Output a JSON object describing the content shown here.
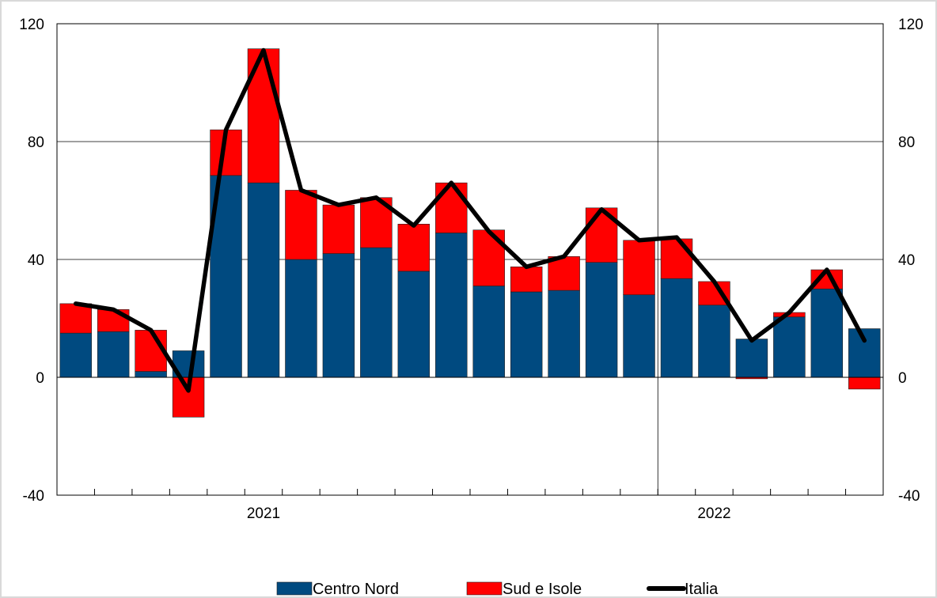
{
  "chart_data": {
    "type": "bar",
    "stacked": true,
    "x": [
      "2020-09",
      "2020-10",
      "2020-11",
      "2020-12",
      "2021-01",
      "2021-02",
      "2021-03",
      "2021-04",
      "2021-05",
      "2021-06",
      "2021-07",
      "2021-08",
      "2021-09",
      "2021-10",
      "2021-11",
      "2021-12",
      "2022-01",
      "2022-02",
      "2022-03",
      "2022-04",
      "2022-05",
      "2022-06"
    ],
    "x_tick_labels": [
      {
        "label": "2021",
        "x": "2021-02"
      },
      {
        "label": "2022",
        "x": "2022-02"
      }
    ],
    "series": [
      {
        "name": "Centro Nord",
        "kind": "bar",
        "color": "#004a80",
        "values": [
          15,
          15.5,
          2,
          9,
          68.5,
          66,
          40,
          42,
          44,
          36,
          49,
          31,
          29,
          29.5,
          39,
          28,
          33.5,
          24.5,
          13,
          20.5,
          30,
          16.5
        ]
      },
      {
        "name": "Sud e Isole",
        "kind": "bar",
        "color": "#ff0000",
        "values": [
          10,
          7.5,
          14,
          -13.5,
          15.5,
          45.5,
          23.5,
          16.5,
          17,
          16,
          17,
          19,
          8.5,
          11.5,
          18.5,
          18.5,
          13.5,
          8,
          -0.5,
          1.5,
          6.5,
          -4
        ]
      },
      {
        "name": "Italia",
        "kind": "line",
        "color": "#000000",
        "values": [
          25,
          23,
          16,
          -4.5,
          84,
          111,
          63.5,
          58.5,
          61,
          51.5,
          66,
          49.5,
          37.5,
          41,
          57,
          46.5,
          47.5,
          32.5,
          12.5,
          22,
          36.5,
          12.5
        ]
      }
    ],
    "ylim": [
      -40,
      120
    ],
    "yticks": [
      -40,
      0,
      40,
      80,
      120
    ],
    "grid": true,
    "legend_position": "bottom"
  }
}
